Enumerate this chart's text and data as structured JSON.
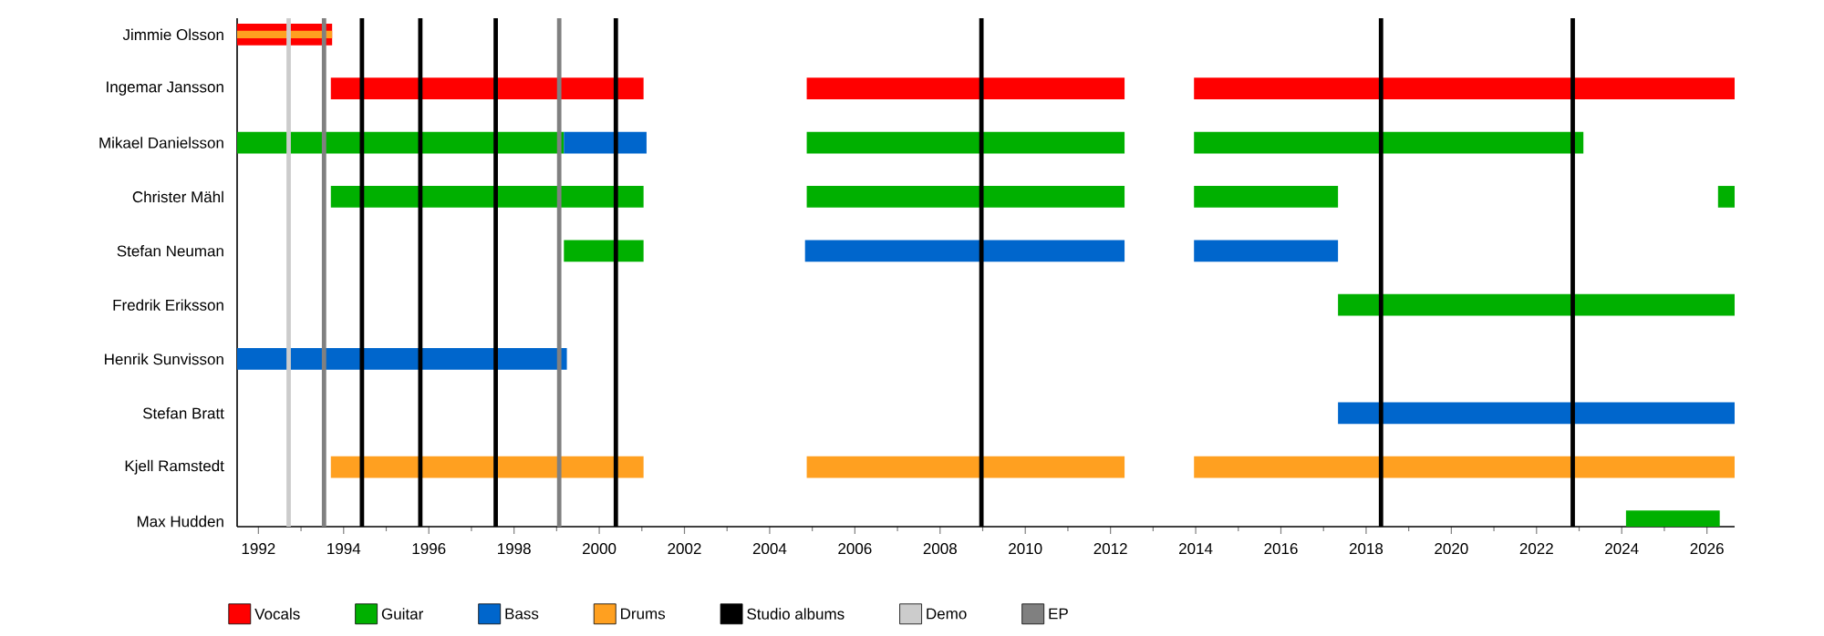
{
  "chart_data": {
    "type": "bar",
    "orientation": "horizontal",
    "legend": "bottom",
    "categories": [
      "Jimmie Olsson",
      "Ingemar Jansson",
      "Mikael Danielsson",
      "Christer Mähl",
      "Stefan Neuman",
      "Fredrik Eriksson",
      "Henrik Sunvisson",
      "Stefan Bratt",
      "Kjell Ramstedt",
      "Max Hudden"
    ],
    "series": [
      {
        "name": "Vocals",
        "color": "#ff0000",
        "base": [
          1991.5,
          1993.7,
          null,
          null,
          null,
          null,
          null,
          null,
          null,
          null
        ],
        "values": [
          2.23,
          7.34,
          null,
          null,
          null,
          null,
          null,
          null,
          null,
          null
        ]
      },
      {
        "color": "#ff0000",
        "base": [
          null,
          2004.87,
          null,
          null,
          null,
          null,
          null,
          null,
          null,
          null
        ],
        "values": [
          null,
          7.46,
          null,
          null,
          null,
          null,
          null,
          null,
          null,
          null
        ]
      },
      {
        "color": "#ff0000",
        "base": [
          null,
          2013.96,
          null,
          null,
          null,
          null,
          null,
          null,
          null,
          null
        ],
        "values": [
          null,
          12.69,
          null,
          null,
          null,
          null,
          null,
          null,
          null,
          null
        ]
      },
      {
        "name": "Guitar",
        "color": "#00b000",
        "base": [
          null,
          null,
          1991.5,
          1993.7,
          1999.17,
          2017.34,
          null,
          null,
          null,
          2024.1
        ],
        "values": [
          null,
          null,
          7.67,
          7.34,
          1.87,
          9.31,
          null,
          null,
          null,
          2.2
        ]
      },
      {
        "color": "#00b000",
        "base": [
          null,
          null,
          2004.87,
          2004.87,
          null,
          null,
          null,
          null,
          null,
          null
        ],
        "values": [
          null,
          null,
          7.46,
          7.46,
          null,
          null,
          null,
          null,
          null,
          null
        ]
      },
      {
        "color": "#00b000",
        "base": [
          null,
          null,
          2013.96,
          2013.96,
          null,
          null,
          null,
          null,
          null,
          null
        ],
        "values": [
          null,
          null,
          9.14,
          3.38,
          null,
          null,
          null,
          null,
          null,
          null
        ]
      },
      {
        "color": "#00b000",
        "base": [
          null,
          null,
          null,
          2026.26,
          null,
          null,
          null,
          null,
          null,
          null
        ],
        "values": [
          null,
          null,
          null,
          0.39,
          null,
          null,
          null,
          null,
          null,
          null
        ]
      },
      {
        "name": "Bass",
        "color": "#0066cc",
        "base": [
          null,
          null,
          1999.17,
          null,
          2004.83,
          null,
          1991.5,
          2017.34,
          null,
          null
        ],
        "values": [
          null,
          null,
          1.94,
          null,
          7.5,
          null,
          7.74,
          9.31,
          null,
          null
        ]
      },
      {
        "color": "#0066cc",
        "base": [
          null,
          null,
          null,
          null,
          2013.96,
          null,
          null,
          null,
          null,
          null
        ],
        "values": [
          null,
          null,
          null,
          null,
          3.38,
          null,
          null,
          null,
          null,
          null
        ]
      },
      {
        "name": "Drums",
        "color": "#ffa020",
        "base": [
          1991.5,
          null,
          null,
          null,
          null,
          null,
          null,
          null,
          1993.7,
          null
        ],
        "values": [
          2.23,
          null,
          null,
          null,
          null,
          null,
          null,
          null,
          7.34,
          null
        ]
      },
      {
        "color": "#ffa020",
        "base": [
          null,
          null,
          null,
          null,
          null,
          null,
          null,
          null,
          2004.87,
          null
        ],
        "values": [
          null,
          null,
          null,
          null,
          null,
          null,
          null,
          null,
          7.46,
          null
        ]
      },
      {
        "color": "#ffa020",
        "base": [
          null,
          null,
          null,
          null,
          null,
          null,
          null,
          null,
          2013.96,
          null
        ],
        "values": [
          null,
          null,
          null,
          null,
          null,
          null,
          null,
          null,
          12.69,
          null
        ]
      }
    ],
    "xlim": [
      1991.5,
      2026.65
    ],
    "xticks": [
      1992,
      1994,
      1996,
      1998,
      2000,
      2002,
      2004,
      2006,
      2008,
      2010,
      2012,
      2014,
      2016,
      2018,
      2020,
      2022,
      2024,
      2026
    ],
    "ref_lines": [
      {
        "axis": "x",
        "value": 1994.43,
        "color": "#000000",
        "label": "Studio albums"
      },
      {
        "axis": "x",
        "value": 1995.8,
        "color": "#000000"
      },
      {
        "axis": "x",
        "value": 1997.57,
        "color": "#000000"
      },
      {
        "axis": "x",
        "value": 2000.39,
        "color": "#000000"
      },
      {
        "axis": "x",
        "value": 2008.97,
        "color": "#000000"
      },
      {
        "axis": "x",
        "value": 2018.35,
        "color": "#000000"
      },
      {
        "axis": "x",
        "value": 2022.85,
        "color": "#000000"
      },
      {
        "axis": "x",
        "value": 1992.71,
        "color": "#cccccc",
        "label": "Demo"
      },
      {
        "axis": "x",
        "value": 1993.54,
        "color": "#808080",
        "label": "EP"
      },
      {
        "axis": "x",
        "value": 1999.06,
        "color": "#808080"
      }
    ]
  }
}
